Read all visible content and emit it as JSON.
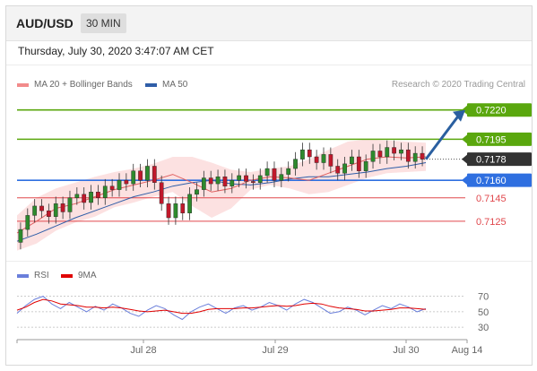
{
  "header": {
    "symbol": "AUD/USD",
    "timeframe": "30 MIN"
  },
  "timestamp": "Thursday, July 30, 2020 3:47:07 AM CET",
  "legend_main": [
    {
      "label": "MA 20 + Bollinger Bands",
      "color": "#f28b8b"
    },
    {
      "label": "MA 50",
      "color": "#2f5ea8"
    }
  ],
  "legend_rsi": [
    {
      "label": "RSI",
      "color": "#6a7fdb"
    },
    {
      "label": "9MA",
      "color": "#e00000"
    }
  ],
  "credit": "Research © 2020 Trading Central",
  "colors": {
    "resistance": "#5aa70e",
    "pivot": "#2f6fe0",
    "support": "#e0484d",
    "current": "#333333",
    "up": "#2d8a2d",
    "down": "#c0182b",
    "arrow": "#2a5fa0",
    "band": "#fbd9d9"
  },
  "chart_data": [
    {
      "type": "candlestick",
      "title": "",
      "ylim": [
        0.7102,
        0.7232
      ],
      "x_ticks": [
        "Jul 28",
        "Jul 29",
        "Jul 30",
        "Aug 14"
      ],
      "levels": [
        {
          "value": "0.7220",
          "kind": "resistance"
        },
        {
          "value": "0.7195",
          "kind": "resistance"
        },
        {
          "value": "0.7178",
          "kind": "current"
        },
        {
          "value": "0.7160",
          "kind": "pivot"
        },
        {
          "value": "0.7145",
          "kind": "support"
        },
        {
          "value": "0.7125",
          "kind": "support"
        }
      ],
      "series": [
        {
          "name": "MA 50",
          "values": [
            0.7108,
            0.7114,
            0.7121,
            0.7128,
            0.7134,
            0.714,
            0.7146,
            0.715,
            0.7155,
            0.7158,
            0.716,
            0.7157,
            0.7156,
            0.7158,
            0.7161,
            0.7163,
            0.7163,
            0.7165,
            0.7167,
            0.717,
            0.7172,
            0.7175
          ]
        },
        {
          "name": "MA 20",
          "values": [
            0.7115,
            0.7125,
            0.7136,
            0.714,
            0.7146,
            0.7152,
            0.7156,
            0.716,
            0.7165,
            0.7158,
            0.715,
            0.7153,
            0.716,
            0.7163,
            0.7162,
            0.716,
            0.7166,
            0.7172,
            0.7178,
            0.718,
            0.7179,
            0.718
          ]
        },
        {
          "name": "Upper band",
          "values": [
            0.713,
            0.7145,
            0.7153,
            0.7158,
            0.7163,
            0.7167,
            0.717,
            0.7174,
            0.718,
            0.718,
            0.7175,
            0.7169,
            0.7167,
            0.717,
            0.7172,
            0.7178,
            0.7186,
            0.7193,
            0.7195,
            0.7194,
            0.7193,
            0.7192
          ]
        },
        {
          "name": "Lower band",
          "values": [
            0.71,
            0.7106,
            0.7117,
            0.7124,
            0.7129,
            0.7137,
            0.7141,
            0.7146,
            0.715,
            0.7138,
            0.7128,
            0.7136,
            0.7152,
            0.7156,
            0.7153,
            0.7148,
            0.715,
            0.7156,
            0.7162,
            0.7166,
            0.7167,
            0.7168
          ]
        }
      ],
      "candles": [
        [
          0.7107,
          0.7118
        ],
        [
          0.7118,
          0.713
        ],
        [
          0.713,
          0.7138
        ],
        [
          0.7138,
          0.7134
        ],
        [
          0.7134,
          0.7129
        ],
        [
          0.7129,
          0.714
        ],
        [
          0.714,
          0.7133
        ],
        [
          0.7133,
          0.7145
        ],
        [
          0.7145,
          0.7148
        ],
        [
          0.7148,
          0.7141
        ],
        [
          0.7141,
          0.715
        ],
        [
          0.715,
          0.7145
        ],
        [
          0.7145,
          0.7155
        ],
        [
          0.7155,
          0.7152
        ],
        [
          0.7152,
          0.716
        ],
        [
          0.716,
          0.7157
        ],
        [
          0.7157,
          0.7168
        ],
        [
          0.7168,
          0.716
        ],
        [
          0.716,
          0.7172
        ],
        [
          0.7172,
          0.7158
        ],
        [
          0.7158,
          0.714
        ],
        [
          0.714,
          0.7128
        ],
        [
          0.7128,
          0.714
        ],
        [
          0.714,
          0.7132
        ],
        [
          0.7132,
          0.7148
        ],
        [
          0.7148,
          0.7152
        ],
        [
          0.7152,
          0.7162
        ],
        [
          0.7162,
          0.7157
        ],
        [
          0.7157,
          0.7163
        ],
        [
          0.7163,
          0.7155
        ],
        [
          0.7155,
          0.716
        ],
        [
          0.716,
          0.7164
        ],
        [
          0.7164,
          0.7159
        ],
        [
          0.7159,
          0.7158
        ],
        [
          0.7158,
          0.7164
        ],
        [
          0.7164,
          0.717
        ],
        [
          0.717,
          0.716
        ],
        [
          0.716,
          0.7165
        ],
        [
          0.7165,
          0.717
        ],
        [
          0.717,
          0.7178
        ],
        [
          0.7178,
          0.7186
        ],
        [
          0.7186,
          0.718
        ],
        [
          0.718,
          0.7175
        ],
        [
          0.7175,
          0.7182
        ],
        [
          0.7182,
          0.7172
        ],
        [
          0.7172,
          0.7166
        ],
        [
          0.7166,
          0.7174
        ],
        [
          0.7174,
          0.718
        ],
        [
          0.718,
          0.7168
        ],
        [
          0.7168,
          0.7176
        ],
        [
          0.7176,
          0.7185
        ],
        [
          0.7185,
          0.718
        ],
        [
          0.718,
          0.7188
        ],
        [
          0.7188,
          0.7183
        ],
        [
          0.7183,
          0.7186
        ],
        [
          0.7186,
          0.7176
        ],
        [
          0.7176,
          0.7183
        ],
        [
          0.7183,
          0.7178
        ]
      ]
    },
    {
      "type": "line",
      "title": "",
      "ylim": [
        22,
        80
      ],
      "y_ticks": [
        "70",
        "50",
        "30"
      ],
      "series": [
        {
          "name": "RSI",
          "values": [
            48,
            58,
            66,
            70,
            60,
            54,
            62,
            56,
            50,
            57,
            52,
            60,
            55,
            48,
            44,
            52,
            58,
            54,
            46,
            40,
            50,
            56,
            60,
            54,
            48,
            55,
            58,
            52,
            56,
            62,
            58,
            52,
            60,
            66,
            62,
            55,
            48,
            50,
            56,
            52,
            46,
            52,
            58,
            54,
            60,
            56,
            50,
            54
          ]
        },
        {
          "name": "9MA",
          "values": [
            52,
            56,
            62,
            66,
            64,
            60,
            59,
            58,
            56,
            56,
            55,
            56,
            55,
            53,
            51,
            50,
            51,
            52,
            50,
            48,
            48,
            50,
            53,
            54,
            54,
            54,
            55,
            55,
            56,
            57,
            58,
            57,
            58,
            60,
            61,
            60,
            57,
            55,
            54,
            53,
            51,
            51,
            52,
            53,
            55,
            55,
            54,
            53
          ]
        }
      ]
    }
  ]
}
